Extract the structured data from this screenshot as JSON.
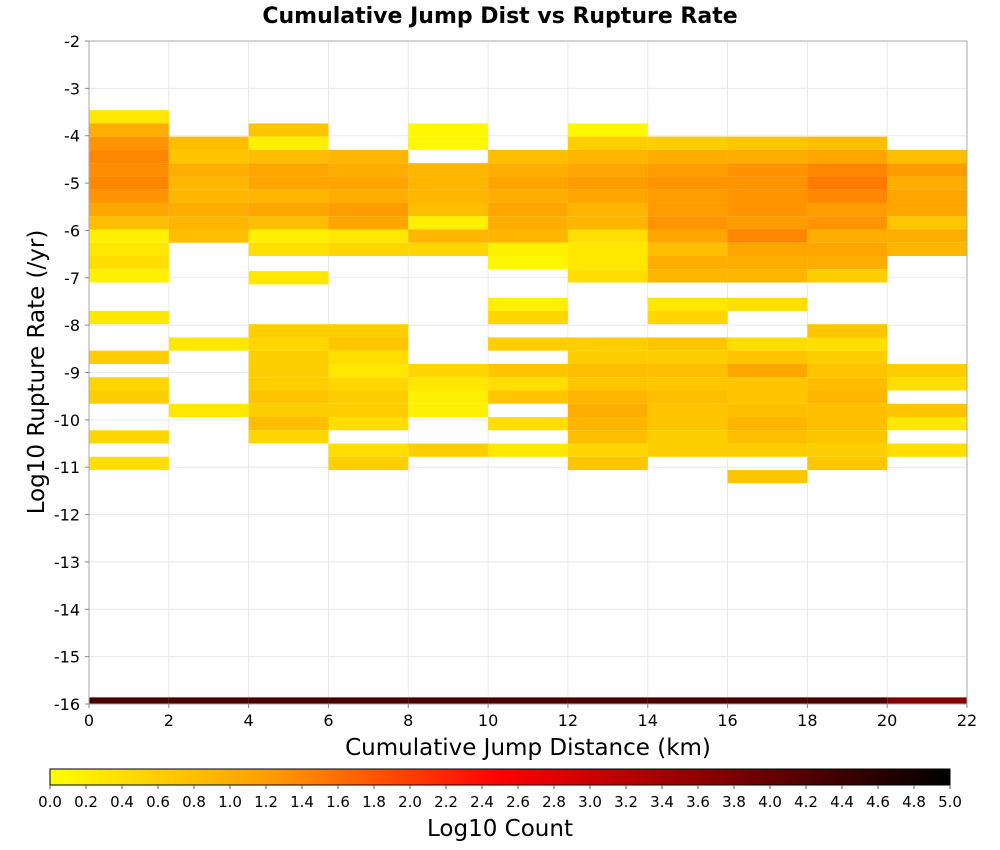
{
  "chart_data": {
    "type": "heatmap",
    "title": "Cumulative Jump Dist vs Rupture Rate",
    "xlabel": "Cumulative Jump Distance (km)",
    "ylabel": "Log10 Rupture Rate (/yr)",
    "xlim": [
      0,
      22
    ],
    "ylim": [
      -16,
      -2
    ],
    "x_ticks": [
      "0",
      "2",
      "4",
      "6",
      "8",
      "10",
      "12",
      "14",
      "16",
      "18",
      "20",
      "22"
    ],
    "y_ticks": [
      "-2",
      "-3",
      "-4",
      "-5",
      "-6",
      "-7",
      "-8",
      "-9",
      "-10",
      "-11",
      "-12",
      "-13",
      "-14",
      "-15",
      "-16"
    ],
    "grid": true,
    "x_bin_width": 2,
    "y_bin_height": 0.28,
    "colorbar": {
      "label": "Log10 Count",
      "range": [
        0,
        5
      ],
      "ticks": [
        "0.0",
        "0.2",
        "0.4",
        "0.6",
        "0.8",
        "1.0",
        "1.2",
        "1.4",
        "1.6",
        "1.8",
        "2.0",
        "2.2",
        "2.4",
        "2.6",
        "2.8",
        "3.0",
        "3.2",
        "3.4",
        "3.6",
        "3.8",
        "4.0",
        "4.2",
        "4.4",
        "4.6",
        "4.8",
        "5.0"
      ],
      "colors": [
        "#ffff00",
        "#ff9900",
        "#ff0000",
        "#800000",
        "#000000"
      ],
      "placement": "bottom"
    },
    "columns": [
      {
        "x": 0,
        "cells": [
          [
            -3.6,
            0.3
          ],
          [
            -3.88,
            1.0
          ],
          [
            -4.16,
            1.3
          ],
          [
            -4.44,
            1.4
          ],
          [
            -4.72,
            1.35
          ],
          [
            -5.0,
            1.4
          ],
          [
            -5.28,
            1.3
          ],
          [
            -5.56,
            1.1
          ],
          [
            -5.84,
            0.8
          ],
          [
            -6.12,
            0.2
          ],
          [
            -6.4,
            0.3
          ],
          [
            -6.68,
            0.4
          ],
          [
            -6.96,
            0.2
          ],
          [
            -7.84,
            0.3
          ],
          [
            -8.68,
            0.6
          ],
          [
            -9.24,
            0.5
          ],
          [
            -9.52,
            0.6
          ],
          [
            -10.36,
            0.5
          ],
          [
            -10.92,
            0.4
          ],
          [
            -16.0,
            4.3
          ]
        ]
      },
      {
        "x": 2,
        "cells": [
          [
            -4.16,
            0.8
          ],
          [
            -4.44,
            0.7
          ],
          [
            -4.72,
            1.0
          ],
          [
            -5.0,
            0.9
          ],
          [
            -5.28,
            0.9
          ],
          [
            -5.56,
            1.0
          ],
          [
            -5.84,
            0.9
          ],
          [
            -6.12,
            0.8
          ],
          [
            -8.4,
            0.3
          ],
          [
            -9.8,
            0.3
          ],
          [
            -16.0,
            4.3
          ]
        ]
      },
      {
        "x": 4,
        "cells": [
          [
            -3.88,
            0.7
          ],
          [
            -4.16,
            0.2
          ],
          [
            -4.44,
            0.8
          ],
          [
            -4.72,
            1.1
          ],
          [
            -5.0,
            1.1
          ],
          [
            -5.28,
            0.9
          ],
          [
            -5.56,
            1.1
          ],
          [
            -5.84,
            0.8
          ],
          [
            -6.12,
            0.2
          ],
          [
            -6.4,
            0.4
          ],
          [
            -7.0,
            0.3
          ],
          [
            -8.12,
            0.6
          ],
          [
            -8.4,
            0.5
          ],
          [
            -8.68,
            0.6
          ],
          [
            -8.96,
            0.6
          ],
          [
            -9.24,
            0.6
          ],
          [
            -9.52,
            0.7
          ],
          [
            -9.8,
            0.6
          ],
          [
            -10.08,
            0.8
          ],
          [
            -10.36,
            0.5
          ],
          [
            -16.0,
            4.3
          ]
        ]
      },
      {
        "x": 6,
        "cells": [
          [
            -4.44,
            0.9
          ],
          [
            -4.72,
            1.0
          ],
          [
            -5.0,
            1.1
          ],
          [
            -5.28,
            1.0
          ],
          [
            -5.56,
            1.2
          ],
          [
            -5.84,
            1.1
          ],
          [
            -6.12,
            0.3
          ],
          [
            -6.4,
            0.5
          ],
          [
            -8.12,
            0.6
          ],
          [
            -8.4,
            0.7
          ],
          [
            -8.68,
            0.4
          ],
          [
            -8.96,
            0.3
          ],
          [
            -9.24,
            0.5
          ],
          [
            -9.52,
            0.6
          ],
          [
            -9.8,
            0.6
          ],
          [
            -10.08,
            0.4
          ],
          [
            -10.64,
            0.4
          ],
          [
            -10.92,
            0.6
          ],
          [
            -16.0,
            4.3
          ]
        ]
      },
      {
        "x": 8,
        "cells": [
          [
            -3.88,
            0.1
          ],
          [
            -4.16,
            0.1
          ],
          [
            -4.72,
            0.9
          ],
          [
            -5.0,
            0.9
          ],
          [
            -5.28,
            0.9
          ],
          [
            -5.56,
            0.8
          ],
          [
            -5.84,
            0.2
          ],
          [
            -6.12,
            0.9
          ],
          [
            -6.4,
            0.5
          ],
          [
            -8.96,
            0.5
          ],
          [
            -9.24,
            0.3
          ],
          [
            -9.52,
            0.2
          ],
          [
            -9.8,
            0.2
          ],
          [
            -10.64,
            0.6
          ],
          [
            -16.0,
            4.3
          ]
        ]
      },
      {
        "x": 10,
        "cells": [
          [
            -4.44,
            0.8
          ],
          [
            -4.72,
            1.0
          ],
          [
            -5.0,
            1.1
          ],
          [
            -5.28,
            1.0
          ],
          [
            -5.56,
            1.1
          ],
          [
            -5.84,
            1.0
          ],
          [
            -6.12,
            0.9
          ],
          [
            -6.4,
            0.2
          ],
          [
            -6.68,
            0.1
          ],
          [
            -7.56,
            0.2
          ],
          [
            -7.84,
            0.5
          ],
          [
            -8.4,
            0.6
          ],
          [
            -8.96,
            0.7
          ],
          [
            -9.24,
            0.4
          ],
          [
            -9.52,
            0.7
          ],
          [
            -10.08,
            0.4
          ],
          [
            -10.64,
            0.3
          ],
          [
            -16.0,
            4.3
          ]
        ]
      },
      {
        "x": 12,
        "cells": [
          [
            -3.88,
            0.1
          ],
          [
            -4.16,
            0.6
          ],
          [
            -4.44,
            0.9
          ],
          [
            -4.72,
            1.1
          ],
          [
            -5.0,
            1.2
          ],
          [
            -5.28,
            1.1
          ],
          [
            -5.56,
            0.9
          ],
          [
            -5.84,
            0.9
          ],
          [
            -6.12,
            0.4
          ],
          [
            -6.4,
            0.3
          ],
          [
            -6.68,
            0.3
          ],
          [
            -6.96,
            0.4
          ],
          [
            -8.4,
            0.6
          ],
          [
            -8.68,
            0.6
          ],
          [
            -8.96,
            0.8
          ],
          [
            -9.24,
            0.7
          ],
          [
            -9.52,
            0.9
          ],
          [
            -9.8,
            1.0
          ],
          [
            -10.08,
            0.9
          ],
          [
            -10.36,
            0.8
          ],
          [
            -10.64,
            0.5
          ],
          [
            -10.92,
            0.7
          ],
          [
            -16.0,
            4.3
          ]
        ]
      },
      {
        "x": 14,
        "cells": [
          [
            -4.16,
            0.6
          ],
          [
            -4.44,
            1.0
          ],
          [
            -4.72,
            1.2
          ],
          [
            -5.0,
            1.3
          ],
          [
            -5.28,
            1.2
          ],
          [
            -5.56,
            1.2
          ],
          [
            -5.84,
            1.3
          ],
          [
            -6.12,
            1.1
          ],
          [
            -6.4,
            0.8
          ],
          [
            -6.68,
            1.0
          ],
          [
            -6.96,
            0.9
          ],
          [
            -7.56,
            0.3
          ],
          [
            -7.84,
            0.5
          ],
          [
            -8.4,
            0.7
          ],
          [
            -8.68,
            0.6
          ],
          [
            -8.96,
            0.8
          ],
          [
            -9.24,
            0.7
          ],
          [
            -9.52,
            0.8
          ],
          [
            -9.8,
            0.7
          ],
          [
            -10.08,
            0.7
          ],
          [
            -10.36,
            0.6
          ],
          [
            -10.64,
            0.6
          ],
          [
            -16.0,
            4.3
          ]
        ]
      },
      {
        "x": 16,
        "cells": [
          [
            -4.16,
            0.7
          ],
          [
            -4.44,
            1.0
          ],
          [
            -4.72,
            1.3
          ],
          [
            -5.0,
            1.3
          ],
          [
            -5.28,
            1.3
          ],
          [
            -5.56,
            1.3
          ],
          [
            -5.84,
            1.2
          ],
          [
            -6.12,
            1.4
          ],
          [
            -6.4,
            1.1
          ],
          [
            -6.68,
            1.0
          ],
          [
            -6.96,
            0.9
          ],
          [
            -7.56,
            0.4
          ],
          [
            -8.4,
            0.4
          ],
          [
            -8.68,
            0.7
          ],
          [
            -8.96,
            1.1
          ],
          [
            -9.24,
            0.7
          ],
          [
            -9.52,
            0.7
          ],
          [
            -9.8,
            0.8
          ],
          [
            -10.08,
            0.9
          ],
          [
            -10.36,
            0.8
          ],
          [
            -10.64,
            0.6
          ],
          [
            -11.2,
            0.7
          ],
          [
            -16.0,
            4.3
          ]
        ]
      },
      {
        "x": 18,
        "cells": [
          [
            -4.16,
            0.8
          ],
          [
            -4.44,
            1.1
          ],
          [
            -4.72,
            1.4
          ],
          [
            -5.0,
            1.5
          ],
          [
            -5.28,
            1.4
          ],
          [
            -5.56,
            1.2
          ],
          [
            -5.84,
            1.3
          ],
          [
            -6.12,
            1.0
          ],
          [
            -6.4,
            1.1
          ],
          [
            -6.68,
            1.0
          ],
          [
            -6.96,
            0.6
          ],
          [
            -8.12,
            0.7
          ],
          [
            -8.4,
            0.4
          ],
          [
            -8.68,
            0.6
          ],
          [
            -8.96,
            0.7
          ],
          [
            -9.24,
            0.8
          ],
          [
            -9.52,
            0.9
          ],
          [
            -9.8,
            0.8
          ],
          [
            -10.08,
            0.8
          ],
          [
            -10.36,
            0.7
          ],
          [
            -10.64,
            0.6
          ],
          [
            -10.92,
            0.7
          ],
          [
            -16.0,
            4.3
          ]
        ]
      },
      {
        "x": 20,
        "cells": [
          [
            -4.44,
            0.8
          ],
          [
            -4.72,
            1.2
          ],
          [
            -5.0,
            1.0
          ],
          [
            -5.28,
            1.1
          ],
          [
            -5.56,
            1.1
          ],
          [
            -5.84,
            0.7
          ],
          [
            -6.12,
            1.0
          ],
          [
            -6.4,
            0.9
          ],
          [
            -8.96,
            0.6
          ],
          [
            -9.24,
            0.4
          ],
          [
            -9.8,
            0.7
          ],
          [
            -10.08,
            0.3
          ],
          [
            -10.64,
            0.4
          ],
          [
            -16.0,
            3.7
          ]
        ]
      }
    ]
  }
}
